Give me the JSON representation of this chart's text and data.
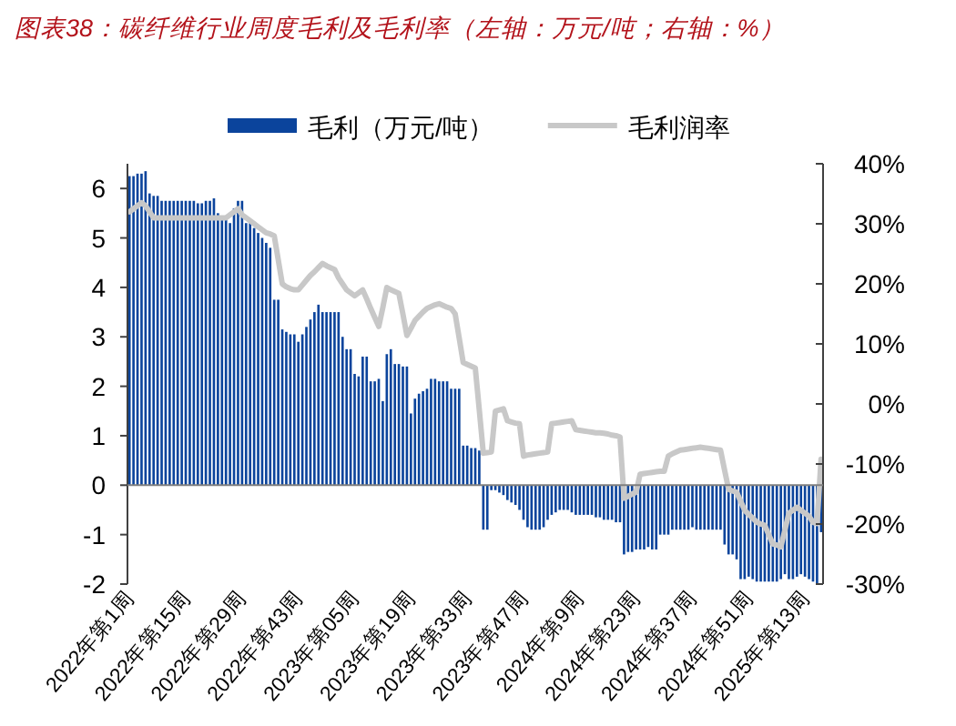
{
  "chart_data": {
    "type": "bar",
    "title": "图表38：碳纤维行业周度毛利及毛利率（左轴：万元/吨；右轴：%）",
    "categories": [
      "2022年第1周",
      null,
      null,
      null,
      null,
      null,
      null,
      null,
      null,
      null,
      null,
      null,
      null,
      null,
      "2022年第15周",
      null,
      null,
      null,
      null,
      null,
      null,
      null,
      null,
      null,
      null,
      null,
      null,
      null,
      "2022年第29周",
      null,
      null,
      null,
      null,
      null,
      null,
      null,
      null,
      null,
      null,
      null,
      null,
      null,
      "2022年第43周",
      null,
      null,
      null,
      null,
      null,
      null,
      null,
      null,
      null,
      null,
      null,
      null,
      null,
      "2023年第05周",
      null,
      null,
      null,
      null,
      null,
      null,
      null,
      null,
      null,
      null,
      null,
      null,
      null,
      "2023年第19周",
      null,
      null,
      null,
      null,
      null,
      null,
      null,
      null,
      null,
      null,
      null,
      null,
      null,
      "2023年第33周",
      null,
      null,
      null,
      null,
      null,
      null,
      null,
      null,
      null,
      null,
      null,
      null,
      null,
      "2023年第47周",
      null,
      null,
      null,
      null,
      null,
      null,
      null,
      null,
      null,
      null,
      null,
      null,
      null,
      "2024年第9周",
      null,
      null,
      null,
      null,
      null,
      null,
      null,
      null,
      null,
      null,
      null,
      null,
      null,
      "2024年第23周",
      null,
      null,
      null,
      null,
      null,
      null,
      null,
      null,
      null,
      null,
      null,
      null,
      null,
      "2024年第37周",
      null,
      null,
      null,
      null,
      null,
      null,
      null,
      null,
      null,
      null,
      null,
      null,
      null,
      "2024年第51周",
      null,
      null,
      null,
      null,
      null,
      null,
      null,
      null,
      null,
      null,
      null,
      null,
      null,
      "2025年第13周",
      null,
      null,
      null,
      null
    ],
    "series": [
      {
        "name": "毛利（万元/吨）",
        "color": "#0b449c",
        "values": [
          6.25,
          6.25,
          6.3,
          6.3,
          6.35,
          5.9,
          5.85,
          5.85,
          5.75,
          5.75,
          5.75,
          5.75,
          5.75,
          5.75,
          5.75,
          5.75,
          5.75,
          5.7,
          5.7,
          5.75,
          5.75,
          5.8,
          5.5,
          5.45,
          5.4,
          5.3,
          5.6,
          5.75,
          5.75,
          5.3,
          5.3,
          5.2,
          5.1,
          5.0,
          4.9,
          4.8,
          3.75,
          3.75,
          3.15,
          3.1,
          3.05,
          3.05,
          2.9,
          3.05,
          3.2,
          3.35,
          3.5,
          3.65,
          3.5,
          3.5,
          3.5,
          3.5,
          3.5,
          3.0,
          2.75,
          2.75,
          2.25,
          2.2,
          2.6,
          2.6,
          2.1,
          2.1,
          2.15,
          1.7,
          2.65,
          2.75,
          2.45,
          2.45,
          2.4,
          2.4,
          1.45,
          1.75,
          1.85,
          1.9,
          1.95,
          2.15,
          2.15,
          2.1,
          2.1,
          2.1,
          1.95,
          1.95,
          1.95,
          0.8,
          0.8,
          0.75,
          0.75,
          0.7,
          -0.9,
          -0.9,
          -0.1,
          -0.1,
          -0.15,
          -0.2,
          -0.3,
          -0.35,
          -0.4,
          -0.5,
          -0.7,
          -0.85,
          -0.9,
          -0.9,
          -0.9,
          -0.85,
          -0.7,
          -0.6,
          -0.55,
          -0.5,
          -0.5,
          -0.5,
          -0.55,
          -0.6,
          -0.6,
          -0.6,
          -0.6,
          -0.6,
          -0.65,
          -0.65,
          -0.7,
          -0.7,
          -0.7,
          -0.75,
          -0.75,
          -1.4,
          -1.35,
          -1.35,
          -1.3,
          -1.3,
          -1.3,
          -1.25,
          -1.3,
          -1.3,
          -1.0,
          -1.0,
          -1.0,
          -0.9,
          -0.9,
          -0.9,
          -0.9,
          -0.9,
          -0.85,
          -0.9,
          -0.9,
          -0.9,
          -0.9,
          -0.9,
          -0.9,
          -0.9,
          -1.2,
          -1.4,
          -1.4,
          -1.5,
          -1.9,
          -1.9,
          -1.85,
          -1.9,
          -1.95,
          -1.95,
          -1.95,
          -1.95,
          -1.95,
          -1.95,
          -1.9,
          -1.8,
          -1.9,
          -1.9,
          -1.85,
          -1.8,
          -1.85,
          -1.9,
          -1.95,
          -2.0,
          -0.95
        ]
      },
      {
        "name": "毛利润率",
        "type": "line",
        "axis": "y2",
        "color": "#c8c8c8",
        "values": [
          32,
          32.5,
          33,
          33.5,
          33,
          32,
          31,
          31,
          31,
          31,
          31,
          31,
          31,
          31,
          31,
          31,
          31,
          31,
          31,
          31,
          31,
          31,
          31,
          31,
          31,
          31.5,
          32,
          32.5,
          31.5,
          31,
          30.5,
          30,
          29.5,
          29,
          28.5,
          28.3,
          28,
          24,
          20,
          19.5,
          19.2,
          19,
          19,
          19.8,
          20.6,
          21.4,
          22,
          22.7,
          23.4,
          23,
          22.7,
          22.4,
          21,
          20,
          19,
          18.5,
          18,
          18.5,
          19,
          17.5,
          15.9,
          14.4,
          12.9,
          16,
          19.4,
          19,
          18.7,
          18.4,
          15,
          11.4,
          12.6,
          13.9,
          14.6,
          15.3,
          15.9,
          16.2,
          16.5,
          16.7,
          16.4,
          16.1,
          15.9,
          15,
          11,
          6.9,
          6.6,
          6.3,
          6,
          -1,
          -8.2,
          -8.1,
          -8,
          -1.2,
          -1,
          -0.8,
          -2.8,
          -3,
          -3.2,
          -3.3,
          -8.7,
          -8.5,
          -8.4,
          -8.3,
          -8.2,
          -8.1,
          -8,
          -3.3,
          -3.2,
          -3.1,
          -3,
          -2.9,
          -2.8,
          -4.3,
          -4.4,
          -4.5,
          -4.6,
          -4.7,
          -4.8,
          -4.8,
          -4.9,
          -5,
          -5.2,
          -5.3,
          -5.5,
          -15.7,
          -15.4,
          -15,
          -14.7,
          -11.7,
          -11.6,
          -11.5,
          -11.4,
          -11.3,
          -11.2,
          -11.2,
          -8.7,
          -8.3,
          -8,
          -7.7,
          -7.6,
          -7.5,
          -7.4,
          -7.3,
          -7.2,
          -7.3,
          -7.4,
          -7.5,
          -7.6,
          -7.7,
          -11,
          -14.2,
          -14.5,
          -14.7,
          -16.2,
          -17.7,
          -18.4,
          -19,
          -19.7,
          -20,
          -20.2,
          -21.8,
          -23.3,
          -23.5,
          -23.8,
          -21,
          -18.2,
          -17.7,
          -17.2,
          -17.7,
          -18.2,
          -18.7,
          -19.7,
          -19.9,
          -9.2
        ]
      }
    ],
    "ylim": [
      -2,
      6.5
    ],
    "yticks": [
      -2,
      -1,
      0,
      1,
      2,
      3,
      4,
      5,
      6
    ],
    "y2lim": [
      -30,
      40
    ],
    "y2ticks": [
      {
        "value": -30,
        "label": "-30%"
      },
      {
        "value": -20,
        "label": "-20%"
      },
      {
        "value": -10,
        "label": "-10%"
      },
      {
        "value": 0,
        "label": "0%"
      },
      {
        "value": 10,
        "label": "10%"
      },
      {
        "value": 20,
        "label": "20%"
      },
      {
        "value": 30,
        "label": "30%"
      },
      {
        "value": 40,
        "label": "40%"
      }
    ],
    "legend": "top"
  }
}
